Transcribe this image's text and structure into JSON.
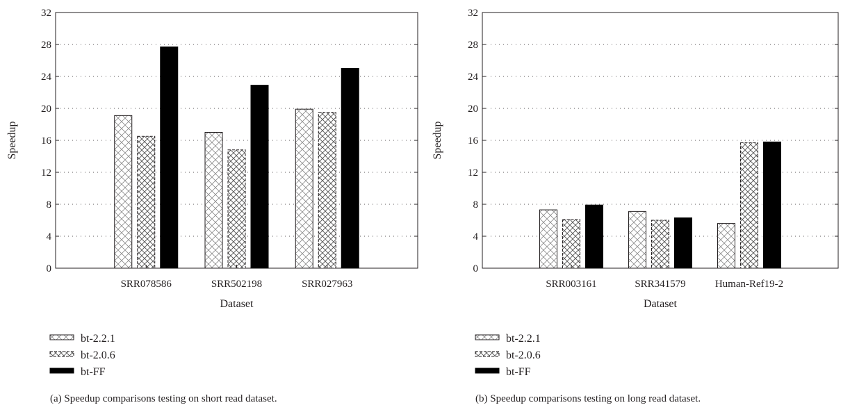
{
  "chart_data": [
    {
      "type": "bar",
      "panel": "a",
      "categories": [
        "SRR078586",
        "SRR502198",
        "SRR027963"
      ],
      "series": [
        {
          "name": "bt-2.2.1",
          "values": [
            19.1,
            17.0,
            19.9
          ]
        },
        {
          "name": "bt-2.0.6",
          "values": [
            16.5,
            14.8,
            19.5
          ]
        },
        {
          "name": "bt-FF",
          "values": [
            27.7,
            22.9,
            25.0
          ]
        }
      ],
      "xlabel": "Dataset",
      "ylabel": "Speedup",
      "ylim": [
        0,
        32
      ],
      "yticks": [
        0,
        4,
        8,
        12,
        16,
        20,
        24,
        28,
        32
      ],
      "grid": true,
      "legend_position": "bottom-left",
      "caption": "(a)  Speedup comparisons testing on short read dataset."
    },
    {
      "type": "bar",
      "panel": "b",
      "categories": [
        "SRR003161",
        "SRR341579",
        "Human-Ref19-2"
      ],
      "series": [
        {
          "name": "bt-2.2.1",
          "values": [
            7.3,
            7.1,
            5.6
          ]
        },
        {
          "name": "bt-2.0.6",
          "values": [
            6.1,
            6.0,
            15.7
          ]
        },
        {
          "name": "bt-FF",
          "values": [
            7.9,
            6.3,
            15.8
          ]
        }
      ],
      "xlabel": "Dataset",
      "ylabel": "Speedup",
      "ylim": [
        0,
        32
      ],
      "yticks": [
        0,
        4,
        8,
        12,
        16,
        20,
        24,
        28,
        32
      ],
      "grid": true,
      "legend_position": "bottom-left",
      "caption": "(b)  Speedup comparisons testing on long read dataset."
    }
  ]
}
